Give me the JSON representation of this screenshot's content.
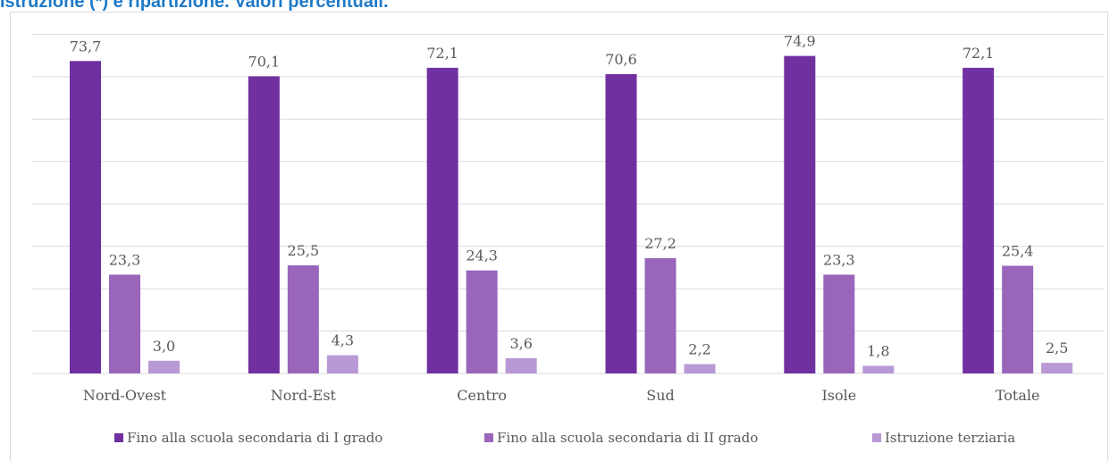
{
  "title": "Istruzione (*) e ripartizione. Valori percentuali.",
  "colors": {
    "series1": "#7030a0",
    "series2": "#9966bb",
    "series3": "#b899d5",
    "gridline": "#d9d9d9",
    "text": "#595959",
    "title": "#1f7ac7"
  },
  "chart_data": {
    "type": "bar",
    "title": "Istruzione (*) e ripartizione. Valori percentuali.",
    "xlabel": "",
    "ylabel": "",
    "ylim": [
      0,
      80
    ],
    "grid": true,
    "legend_position": "bottom",
    "categories": [
      "Nord-Ovest",
      "Nord-Est",
      "Centro",
      "Sud",
      "Isole",
      "Totale"
    ],
    "series": [
      {
        "name": "Fino alla scuola secondaria di I grado",
        "values": [
          73.7,
          70.1,
          72.1,
          70.6,
          74.9,
          72.1
        ],
        "labels": [
          "73,7",
          "70,1",
          "72,1",
          "70,6",
          "74,9",
          "72,1"
        ]
      },
      {
        "name": "Fino alla scuola secondaria di II grado",
        "values": [
          23.3,
          25.5,
          24.3,
          27.2,
          23.3,
          25.4
        ],
        "labels": [
          "23,3",
          "25,5",
          "24,3",
          "27,2",
          "23,3",
          "25,4"
        ]
      },
      {
        "name": "Istruzione terziaria",
        "values": [
          3.0,
          4.3,
          3.6,
          2.2,
          1.8,
          2.5
        ],
        "labels": [
          "3,0",
          "4,3",
          "3,6",
          "2,2",
          "1,8",
          "2,5"
        ]
      }
    ]
  }
}
